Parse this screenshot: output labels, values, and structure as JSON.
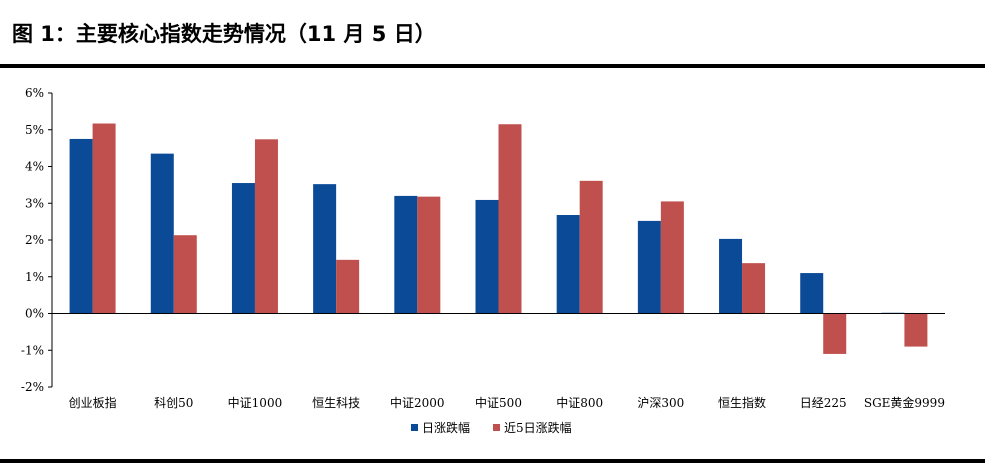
{
  "title": "图 1：主要核心指数走势情况（11 月 5 日）",
  "colors": {
    "daily": "#0B4A97",
    "five_day": "#C0504D",
    "axis": "#000000"
  },
  "chart_data": {
    "type": "bar",
    "title": "",
    "xlabel": "",
    "ylabel": "",
    "ylim": [
      -2,
      6
    ],
    "yticks": [
      -2,
      -1,
      0,
      1,
      2,
      3,
      4,
      5,
      6
    ],
    "ytick_labels": [
      "-2%",
      "-1%",
      "0%",
      "1%",
      "2%",
      "3%",
      "4%",
      "5%",
      "6%"
    ],
    "grid": false,
    "legend_position": "bottom",
    "categories": [
      "创业板指",
      "科创50",
      "中证1000",
      "恒生科技",
      "中证2000",
      "中证500",
      "中证800",
      "沪深300",
      "恒生指数",
      "日经225",
      "SGE黄金9999"
    ],
    "series": [
      {
        "name": "日涨跌幅",
        "values": [
          4.75,
          4.35,
          3.55,
          3.52,
          3.2,
          3.09,
          2.68,
          2.52,
          2.03,
          1.1,
          0.02
        ]
      },
      {
        "name": "近5日涨跌幅",
        "values": [
          5.17,
          2.13,
          4.74,
          1.46,
          3.18,
          5.15,
          3.61,
          3.05,
          1.37,
          -1.1,
          -0.9
        ]
      }
    ]
  }
}
